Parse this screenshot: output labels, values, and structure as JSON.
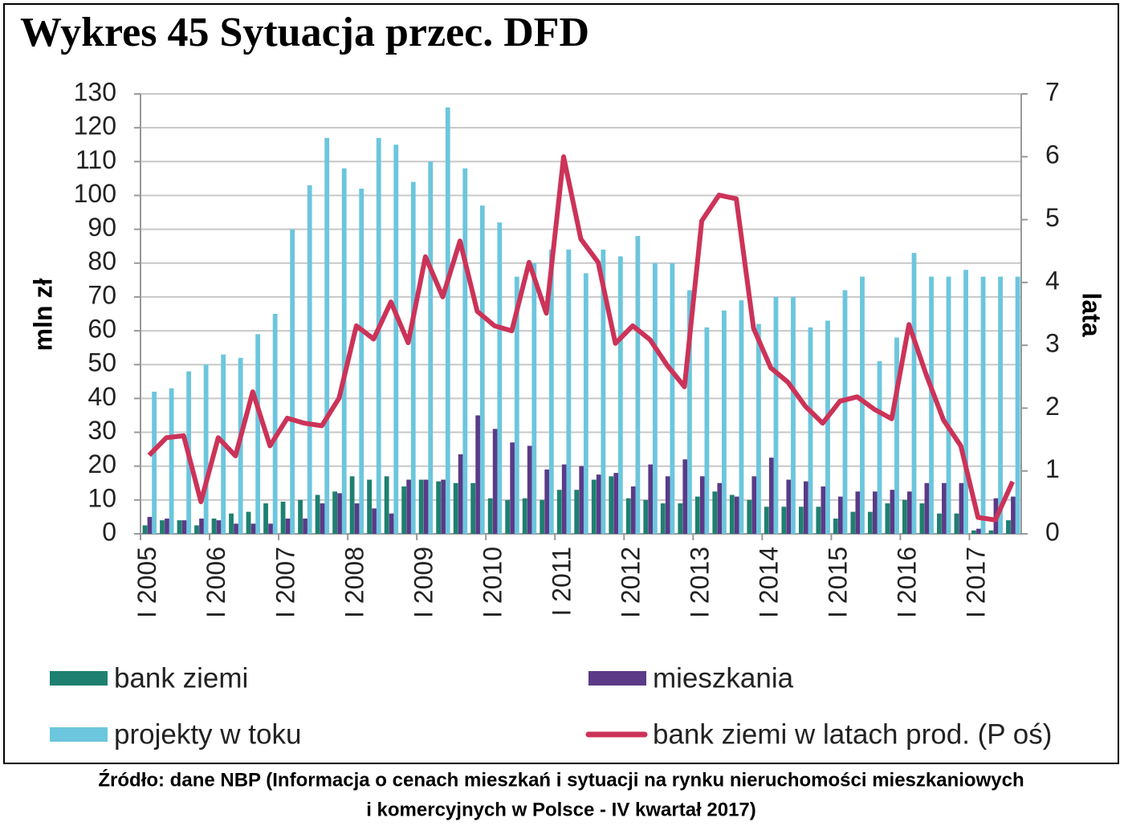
{
  "chart_data": {
    "type": "bar",
    "title": "Wykres 45 Sytuacja przec. DFD",
    "y_label": "mln zł",
    "y2_label": "lata",
    "source": [
      "Źródło: dane NBP (Informacja o cenach mieszkań i sytuacji na rynku nieruchomości mieszkaniowych",
      "i komercyjnych w Polsce - IV kwartał 2017)"
    ],
    "categories": [
      "I 2005",
      null,
      null,
      null,
      "I 2006",
      null,
      null,
      null,
      "I 2007",
      null,
      null,
      null,
      "I 2008",
      null,
      null,
      null,
      "I 2009",
      null,
      null,
      null,
      "I 2010",
      null,
      null,
      null,
      "I 2011",
      null,
      null,
      null,
      "I 2012",
      null,
      null,
      null,
      "I 2013",
      null,
      null,
      null,
      "I 2014",
      null,
      null,
      null,
      "I 2015",
      null,
      null,
      null,
      "I 2016",
      null,
      null,
      null,
      "I 2017",
      null,
      null
    ],
    "series": [
      {
        "name": "bank ziemi",
        "color": "#1e8070",
        "values": [
          2.5,
          4,
          4,
          2.5,
          4.5,
          6,
          6.5,
          9,
          9.5,
          10,
          11.5,
          12.5,
          17,
          16,
          17,
          14,
          16,
          15.5,
          15,
          15,
          10.5,
          10,
          10.5,
          10,
          13,
          13,
          16,
          17,
          10.5,
          10,
          9,
          9,
          11,
          12.5,
          11.5,
          10,
          8,
          8,
          8,
          8,
          4.5,
          6.5,
          6.5,
          9,
          10,
          9,
          6,
          6,
          1,
          1,
          4
        ]
      },
      {
        "name": "mieszkania",
        "color": "#5b3a87",
        "values": [
          5,
          4.5,
          4,
          4.5,
          4,
          3,
          3,
          3,
          4.5,
          4.5,
          9,
          12,
          9,
          7.5,
          6,
          16,
          16,
          16,
          23.5,
          35,
          31,
          27,
          26,
          19,
          20.5,
          20,
          17.5,
          18,
          14,
          20.5,
          17,
          22,
          17,
          15,
          11,
          17,
          22.5,
          16,
          15.5,
          14,
          11,
          12.5,
          12.5,
          13,
          12.5,
          15,
          15,
          15,
          1.5,
          10.5,
          11
        ]
      },
      {
        "name": "projekty w toku",
        "color": "#6cc6dd",
        "values": [
          42,
          43,
          48,
          50,
          53,
          52,
          59,
          65,
          90,
          103,
          117,
          108,
          102,
          117,
          115,
          104,
          110,
          126,
          108,
          97,
          92,
          76,
          80,
          84,
          84,
          77,
          84,
          82,
          88,
          80,
          80,
          72,
          61,
          66,
          69,
          62,
          70,
          70,
          61,
          63,
          72,
          76,
          51,
          58,
          83,
          76,
          76,
          78,
          76,
          76,
          76
        ]
      },
      {
        "name": "bank ziemi w latach prod. (P oś)",
        "color": "#cc3358",
        "type": "line",
        "axis": "y2",
        "values": [
          1.25,
          1.53,
          1.56,
          0.51,
          1.53,
          1.24,
          2.26,
          1.4,
          1.84,
          1.76,
          1.72,
          2.16,
          3.31,
          3.1,
          3.69,
          3.04,
          4.41,
          3.77,
          4.66,
          3.54,
          3.31,
          3.23,
          4.32,
          3.51,
          6.0,
          4.69,
          4.32,
          3.03,
          3.31,
          3.09,
          2.68,
          2.34,
          4.98,
          5.39,
          5.33,
          3.27,
          2.64,
          2.41,
          2.03,
          1.76,
          2.11,
          2.18,
          1.98,
          1.83,
          3.33,
          2.53,
          1.81,
          1.4,
          0.26,
          0.22,
          0.83
        ]
      }
    ],
    "ylim": [
      0,
      130
    ],
    "yticks": [
      0,
      10,
      20,
      30,
      40,
      50,
      60,
      70,
      80,
      90,
      100,
      110,
      120,
      130
    ],
    "y2lim": [
      0,
      7
    ],
    "y2ticks": [
      0,
      1,
      2,
      3,
      4,
      5,
      6,
      7
    ],
    "grid": true
  }
}
